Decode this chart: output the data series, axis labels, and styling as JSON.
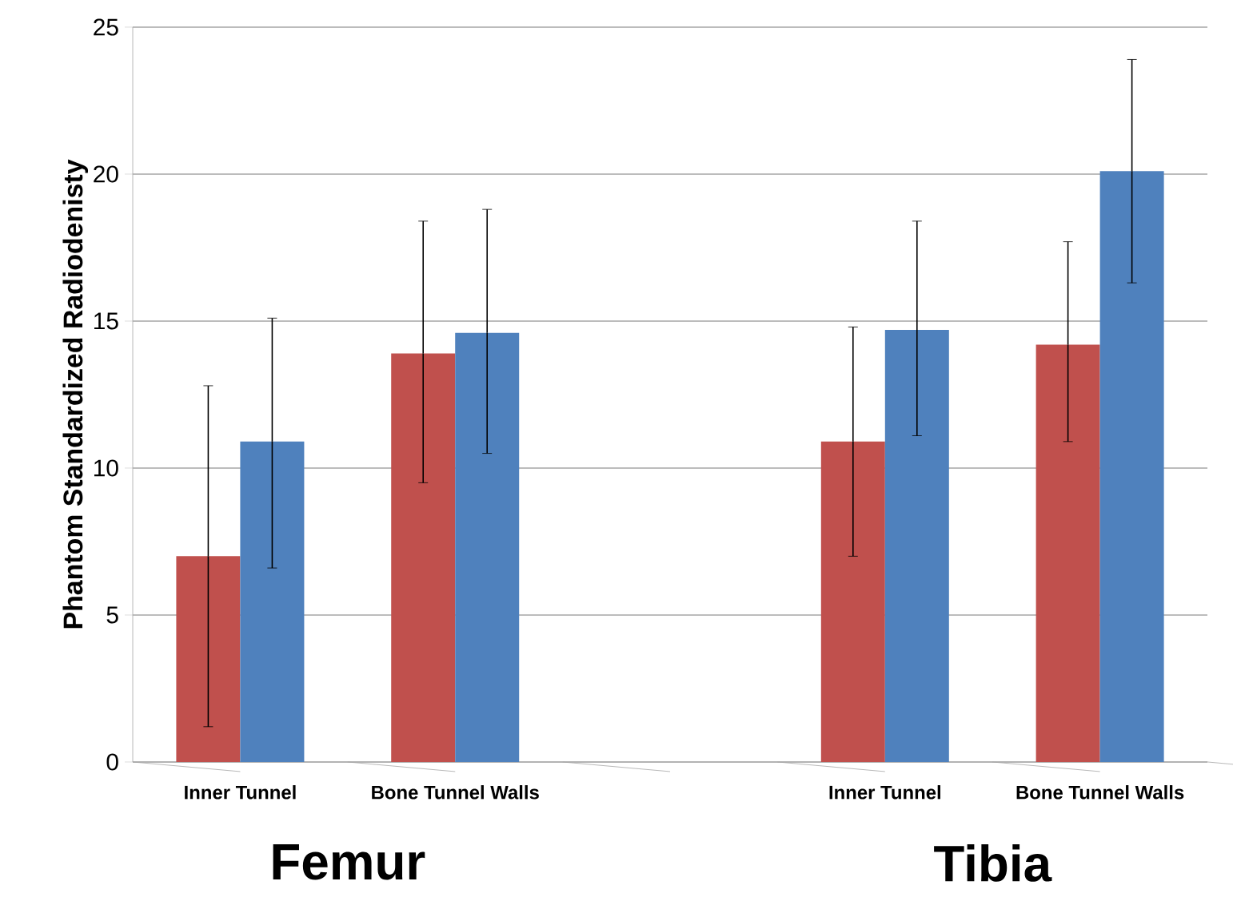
{
  "chart_data": {
    "type": "bar",
    "ylabel": "Phantom Standardized Radiodenisty",
    "categories": [
      "Inner Tunnel",
      "Bone Tunnel Walls",
      null,
      "Inner Tunnel",
      "Bone Tunnel Walls"
    ],
    "series": [
      {
        "color": "#c0504d",
        "values": [
          7.0,
          13.9,
          null,
          10.9,
          14.2
        ],
        "errors": [
          [
            1.2,
            12.8
          ],
          [
            9.5,
            18.4
          ],
          null,
          [
            7.0,
            14.8
          ],
          [
            10.9,
            17.7
          ]
        ]
      },
      {
        "color": "#4f81bd",
        "values": [
          10.9,
          14.6,
          null,
          14.7,
          20.1
        ],
        "errors": [
          [
            6.6,
            15.1
          ],
          [
            10.5,
            18.8
          ],
          null,
          [
            11.1,
            18.4
          ],
          [
            16.3,
            23.9
          ]
        ]
      }
    ],
    "ylim": [
      0,
      25
    ],
    "yticks": [
      0,
      5,
      10,
      15,
      20,
      25
    ],
    "grid": "y",
    "annotations": [
      "Femur",
      "Tibia"
    ]
  }
}
